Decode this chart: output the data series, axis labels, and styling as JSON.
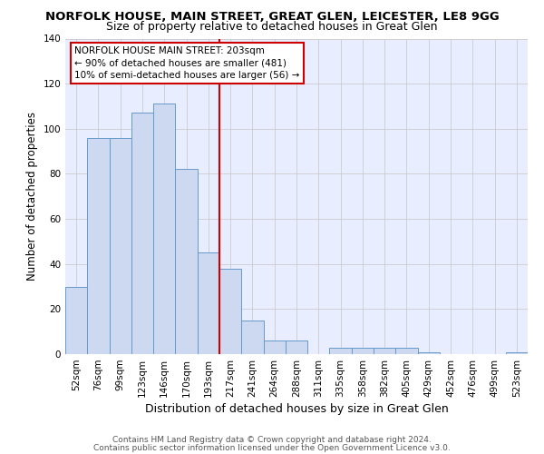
{
  "title_line1": "NORFOLK HOUSE, MAIN STREET, GREAT GLEN, LEICESTER, LE8 9GG",
  "title_line2": "Size of property relative to detached houses in Great Glen",
  "xlabel": "Distribution of detached houses by size in Great Glen",
  "ylabel": "Number of detached properties",
  "categories": [
    "52sqm",
    "76sqm",
    "99sqm",
    "123sqm",
    "146sqm",
    "170sqm",
    "193sqm",
    "217sqm",
    "241sqm",
    "264sqm",
    "288sqm",
    "311sqm",
    "335sqm",
    "358sqm",
    "382sqm",
    "405sqm",
    "429sqm",
    "452sqm",
    "476sqm",
    "499sqm",
    "523sqm"
  ],
  "values": [
    30,
    96,
    96,
    107,
    111,
    82,
    45,
    38,
    15,
    6,
    6,
    0,
    3,
    3,
    3,
    3,
    1,
    0,
    0,
    0,
    1
  ],
  "bar_color": "#ccd9f0",
  "bar_edge_color": "#6699cc",
  "vline_color": "#cc0000",
  "ylim": [
    0,
    140
  ],
  "yticks": [
    0,
    20,
    40,
    60,
    80,
    100,
    120,
    140
  ],
  "grid_color": "#cccccc",
  "bg_color": "#e8eeff",
  "annotation_title": "NORFOLK HOUSE MAIN STREET: 203sqm",
  "annotation_line2": "← 90% of detached houses are smaller (481)",
  "annotation_line3": "10% of semi-detached houses are larger (56) →",
  "annotation_box_color": "#ffffff",
  "annotation_box_edge": "#cc0000",
  "footer_line1": "Contains HM Land Registry data © Crown copyright and database right 2024.",
  "footer_line2": "Contains public sector information licensed under the Open Government Licence v3.0.",
  "title_fontsize": 9.5,
  "subtitle_fontsize": 9,
  "xlabel_fontsize": 9,
  "ylabel_fontsize": 8.5,
  "tick_fontsize": 7.5,
  "annotation_fontsize": 7.5,
  "footer_fontsize": 6.5
}
